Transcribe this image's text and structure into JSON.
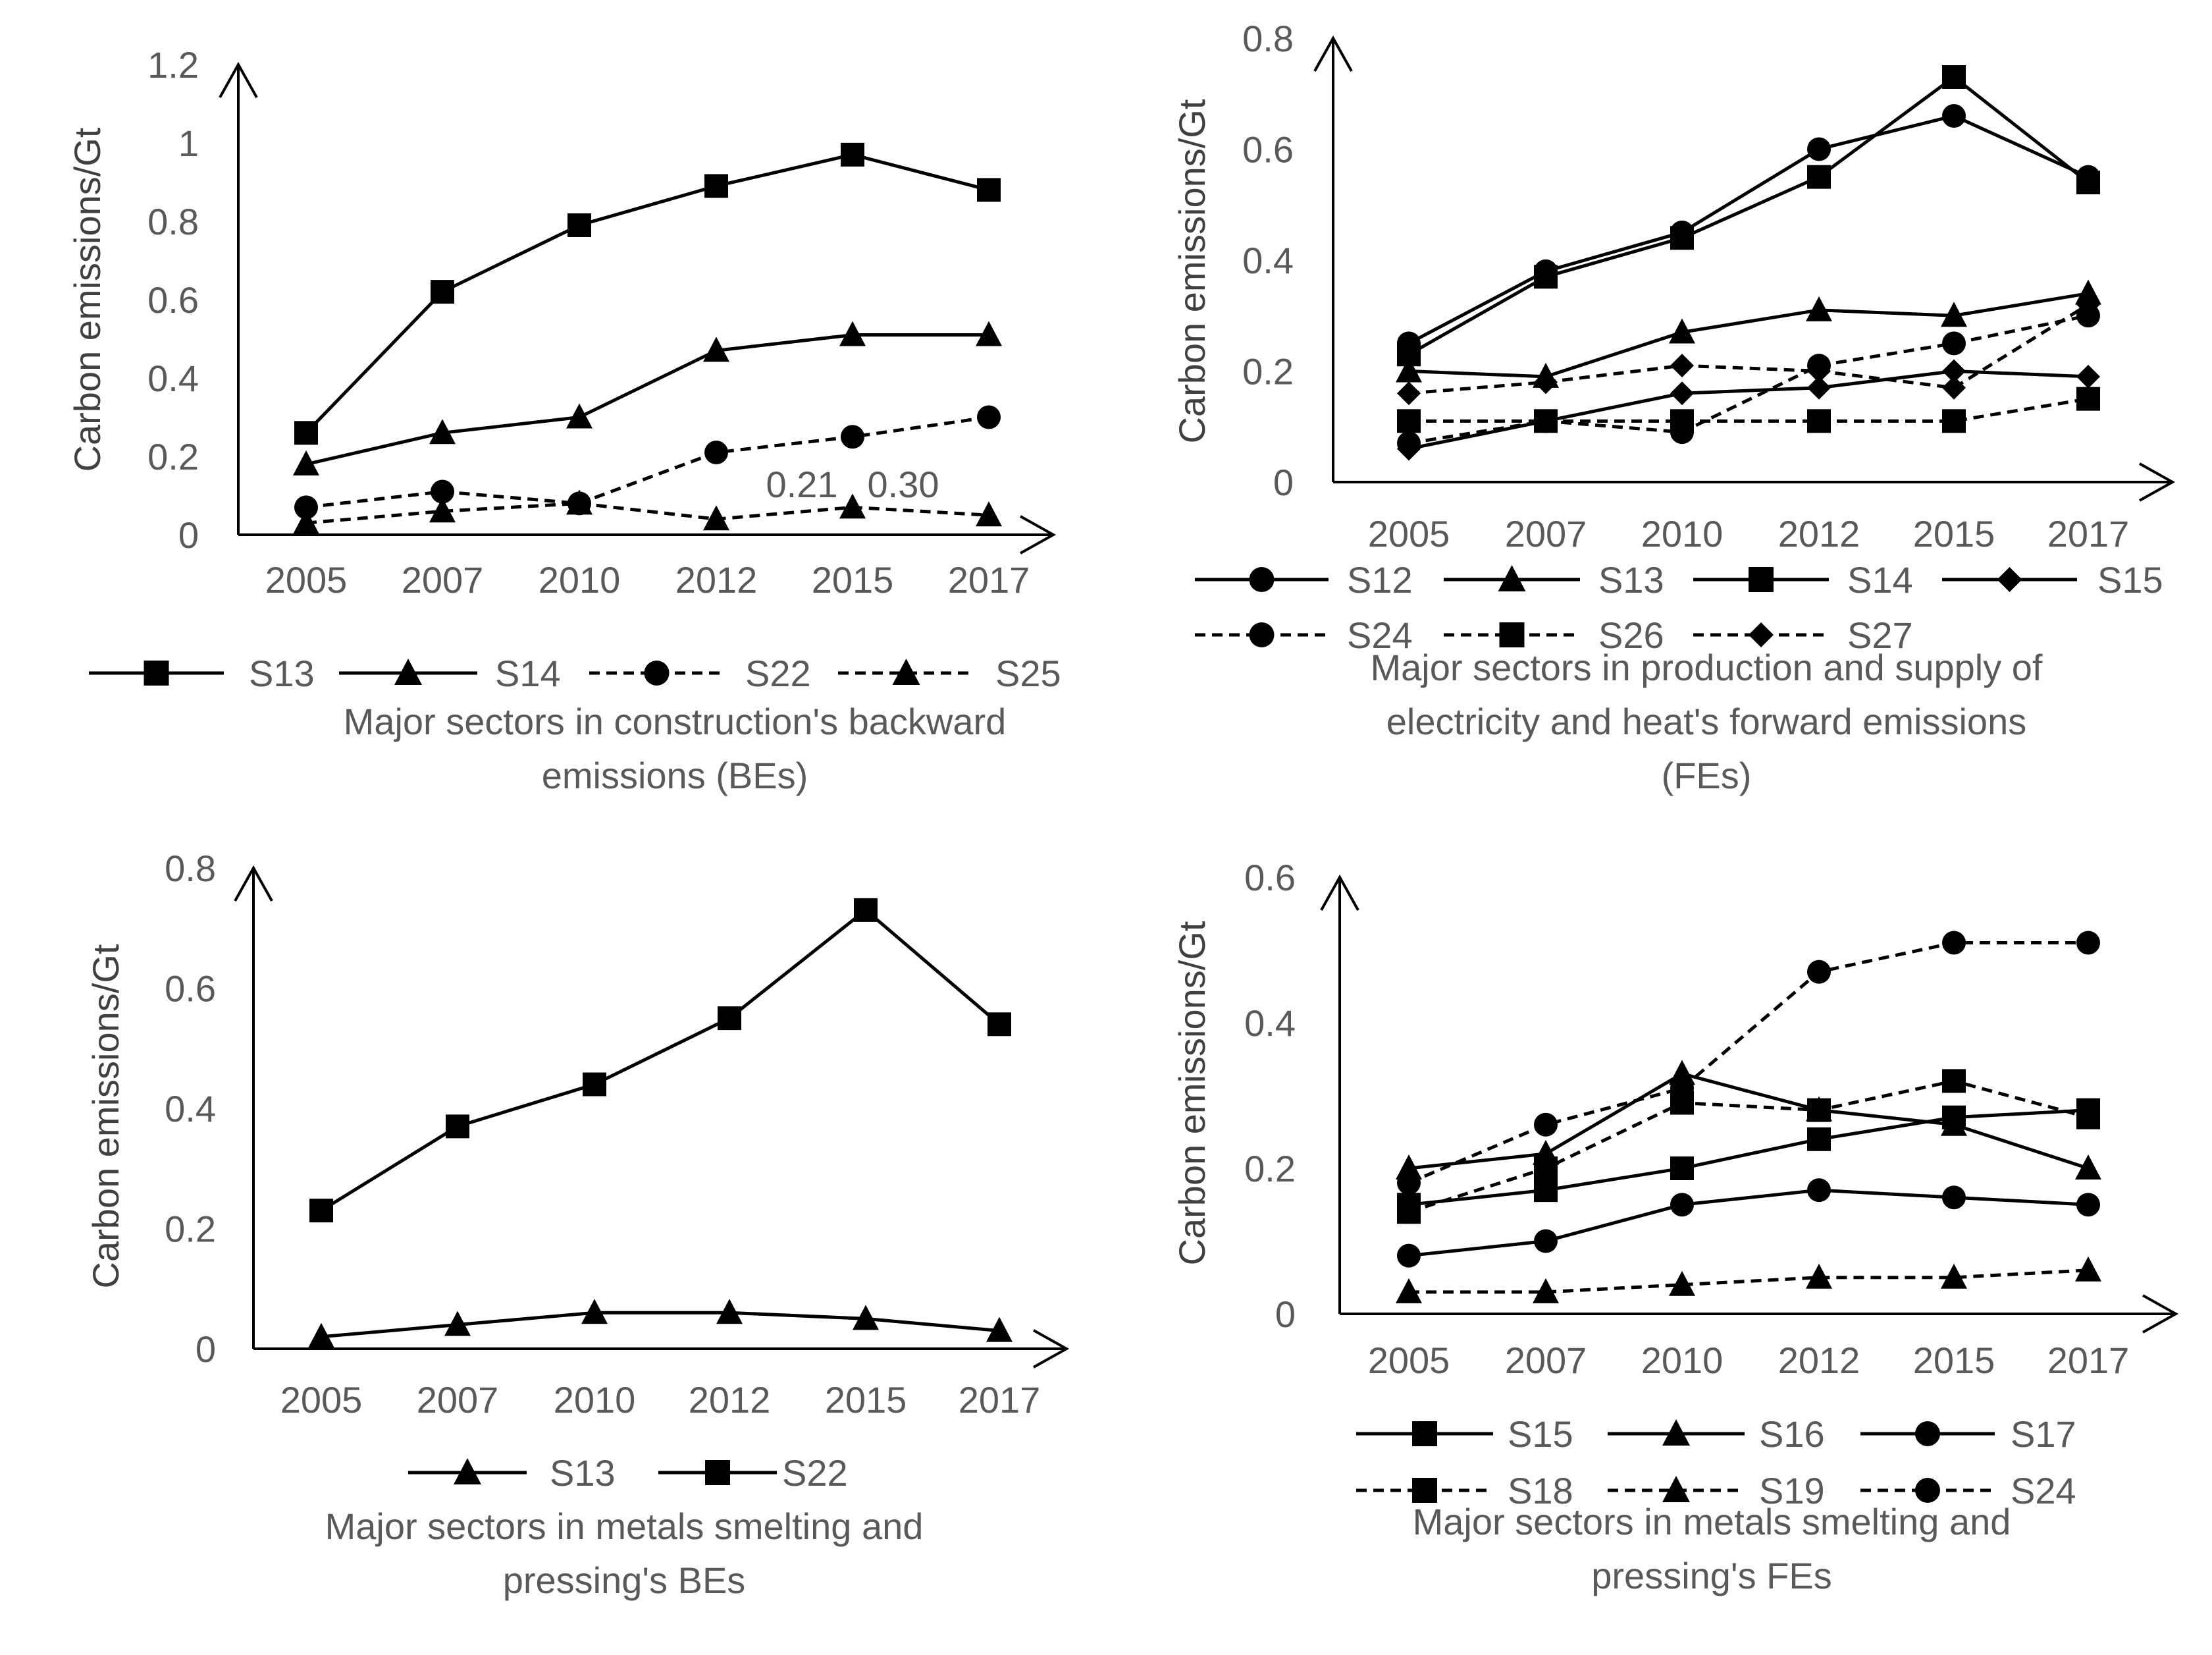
{
  "chart_data": [
    {
      "type": "line",
      "ylabel": "Carbon emissions/Gt",
      "x": [
        "2005",
        "2007",
        "2010",
        "2012",
        "2015",
        "2017"
      ],
      "ylim": [
        0,
        1.2
      ],
      "yticks": [
        "0",
        "0.2",
        "0.4",
        "0.6",
        "0.8",
        "1",
        "1.2"
      ],
      "grid": false,
      "legend_position": "bottom",
      "series": [
        {
          "name": "S13",
          "values": [
            0.26,
            0.62,
            0.79,
            0.89,
            0.97,
            0.88
          ],
          "marker": "square",
          "dash": false
        },
        {
          "name": "S14",
          "values": [
            0.18,
            0.26,
            0.3,
            0.47,
            0.51,
            0.51
          ],
          "marker": "triangle",
          "dash": false
        },
        {
          "name": "S22",
          "values": [
            0.07,
            0.11,
            0.08,
            0.21,
            0.25,
            0.3
          ],
          "marker": "circle",
          "dash": true
        },
        {
          "name": "S25",
          "values": [
            0.03,
            0.06,
            0.08,
            0.04,
            0.07,
            0.05
          ],
          "marker": "triangle",
          "dash": true
        }
      ],
      "annotations": [
        "0.21",
        "0.30"
      ],
      "caption": [
        "Major sectors in construction's backward",
        "emissions (BEs)"
      ]
    },
    {
      "type": "line",
      "ylabel": "Carbon emissions/Gt",
      "x": [
        "2005",
        "2007",
        "2010",
        "2012",
        "2015",
        "2017"
      ],
      "ylim": [
        0,
        0.8
      ],
      "yticks": [
        "0",
        "0.2",
        "0.4",
        "0.6",
        "0.8"
      ],
      "grid": false,
      "legend_position": "bottom",
      "series": [
        {
          "name": "S12",
          "values": [
            0.25,
            0.38,
            0.45,
            0.6,
            0.66,
            0.55
          ],
          "marker": "circle",
          "dash": false
        },
        {
          "name": "S13",
          "values": [
            0.2,
            0.19,
            0.27,
            0.31,
            0.3,
            0.34
          ],
          "marker": "triangle",
          "dash": false
        },
        {
          "name": "S14",
          "values": [
            0.23,
            0.37,
            0.44,
            0.55,
            0.73,
            0.54
          ],
          "marker": "square",
          "dash": false
        },
        {
          "name": "S15",
          "values": [
            0.06,
            0.11,
            0.16,
            0.17,
            0.2,
            0.19
          ],
          "marker": "diamond",
          "dash": false
        },
        {
          "name": "S24",
          "values": [
            0.07,
            0.11,
            0.09,
            0.21,
            0.25,
            0.3
          ],
          "marker": "circle",
          "dash": true
        },
        {
          "name": "S26",
          "values": [
            0.11,
            0.11,
            0.11,
            0.11,
            0.11,
            0.15
          ],
          "marker": "square",
          "dash": true
        },
        {
          "name": "S27",
          "values": [
            0.16,
            0.18,
            0.21,
            0.2,
            0.17,
            0.32
          ],
          "marker": "diamond",
          "dash": true
        }
      ],
      "caption": [
        "Major sectors in production and supply of",
        "electricity and heat's forward emissions",
        "(FEs)"
      ]
    },
    {
      "type": "line",
      "ylabel": "Carbon emissions/Gt",
      "x": [
        "2005",
        "2007",
        "2010",
        "2012",
        "2015",
        "2017"
      ],
      "ylim": [
        0,
        0.8
      ],
      "yticks": [
        "0",
        "0.2",
        "0.4",
        "0.6",
        "0.8"
      ],
      "grid": false,
      "legend_position": "bottom",
      "series": [
        {
          "name": "S13",
          "values": [
            0.02,
            0.04,
            0.06,
            0.06,
            0.05,
            0.03
          ],
          "marker": "triangle",
          "dash": false
        },
        {
          "name": "S22",
          "values": [
            0.23,
            0.37,
            0.44,
            0.55,
            0.73,
            0.54
          ],
          "marker": "square",
          "dash": false
        }
      ],
      "caption": [
        "Major sectors in metals smelting and",
        "pressing's BEs"
      ]
    },
    {
      "type": "line",
      "ylabel": "Carbon emissions/Gt",
      "x": [
        "2005",
        "2007",
        "2010",
        "2012",
        "2015",
        "2017"
      ],
      "ylim": [
        0,
        0.6
      ],
      "yticks": [
        "0",
        "0.2",
        "0.4",
        "0.6"
      ],
      "grid": false,
      "legend_position": "bottom",
      "series": [
        {
          "name": "S15",
          "values": [
            0.15,
            0.17,
            0.2,
            0.24,
            0.27,
            0.28
          ],
          "marker": "square",
          "dash": false
        },
        {
          "name": "S16",
          "values": [
            0.2,
            0.22,
            0.33,
            0.28,
            0.26,
            0.2
          ],
          "marker": "triangle",
          "dash": false
        },
        {
          "name": "S17",
          "values": [
            0.08,
            0.1,
            0.15,
            0.17,
            0.16,
            0.15
          ],
          "marker": "circle",
          "dash": false
        },
        {
          "name": "S18",
          "values": [
            0.14,
            0.2,
            0.29,
            0.28,
            0.32,
            0.27
          ],
          "marker": "square",
          "dash": true
        },
        {
          "name": "S19",
          "values": [
            0.03,
            0.03,
            0.04,
            0.05,
            0.05,
            0.06
          ],
          "marker": "triangle",
          "dash": true
        },
        {
          "name": "S24",
          "values": [
            0.18,
            0.26,
            0.31,
            0.47,
            0.51,
            0.51
          ],
          "marker": "circle",
          "dash": true
        }
      ],
      "caption": [
        "Major sectors in metals smelting and",
        "pressing's FEs"
      ]
    }
  ]
}
